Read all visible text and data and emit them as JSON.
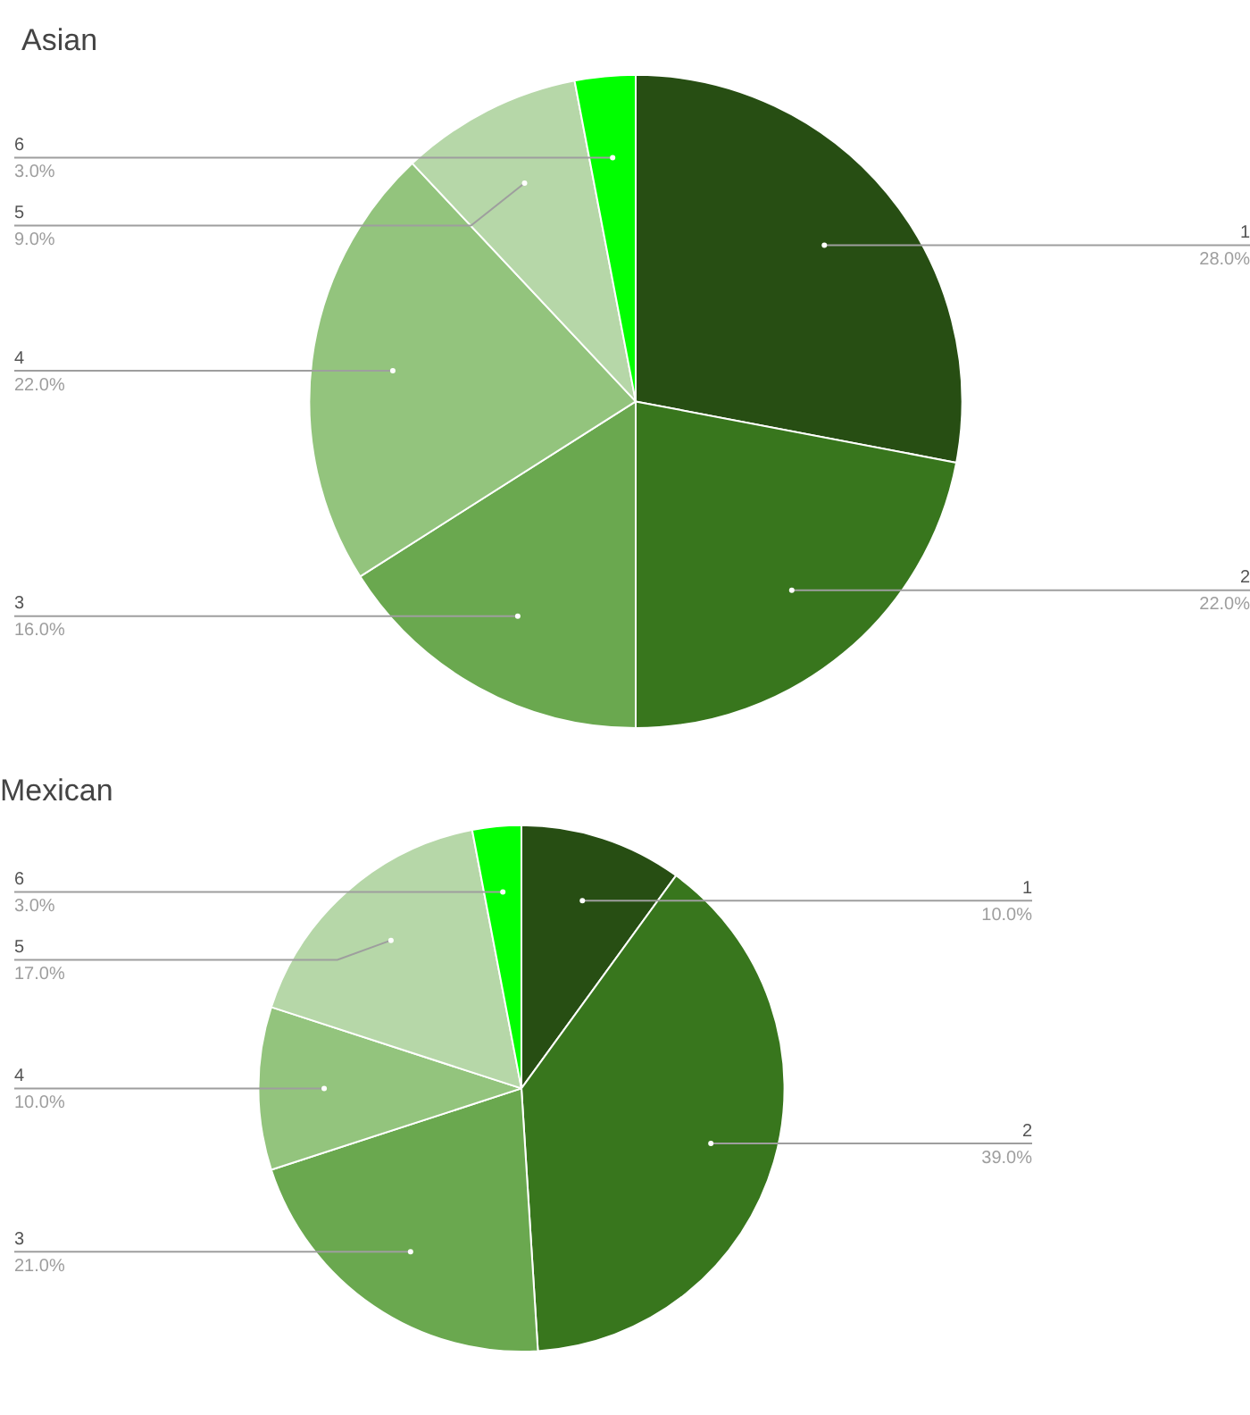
{
  "chart_data": [
    {
      "type": "pie",
      "title": "Asian",
      "categories": [
        "1",
        "2",
        "3",
        "4",
        "5",
        "6"
      ],
      "values": [
        28,
        22,
        16,
        22,
        9,
        3
      ],
      "value_labels": [
        "28.0%",
        "22.0%",
        "16.0%",
        "22.0%",
        "9.0%",
        "3.0%"
      ],
      "colors": [
        "#274e13",
        "#38761d",
        "#6aa84f",
        "#93c47d",
        "#b6d7a8",
        "#00ff00"
      ],
      "legend": false
    },
    {
      "type": "pie",
      "title": "Mexican",
      "categories": [
        "1",
        "2",
        "3",
        "4",
        "5",
        "6"
      ],
      "values": [
        10,
        39,
        21,
        10,
        17,
        3
      ],
      "value_labels": [
        "10.0%",
        "39.0%",
        "21.0%",
        "10.0%",
        "17.0%",
        "3.0%"
      ],
      "colors": [
        "#274e13",
        "#38761d",
        "#6aa84f",
        "#93c47d",
        "#b6d7a8",
        "#00ff00"
      ],
      "legend": false
    }
  ]
}
